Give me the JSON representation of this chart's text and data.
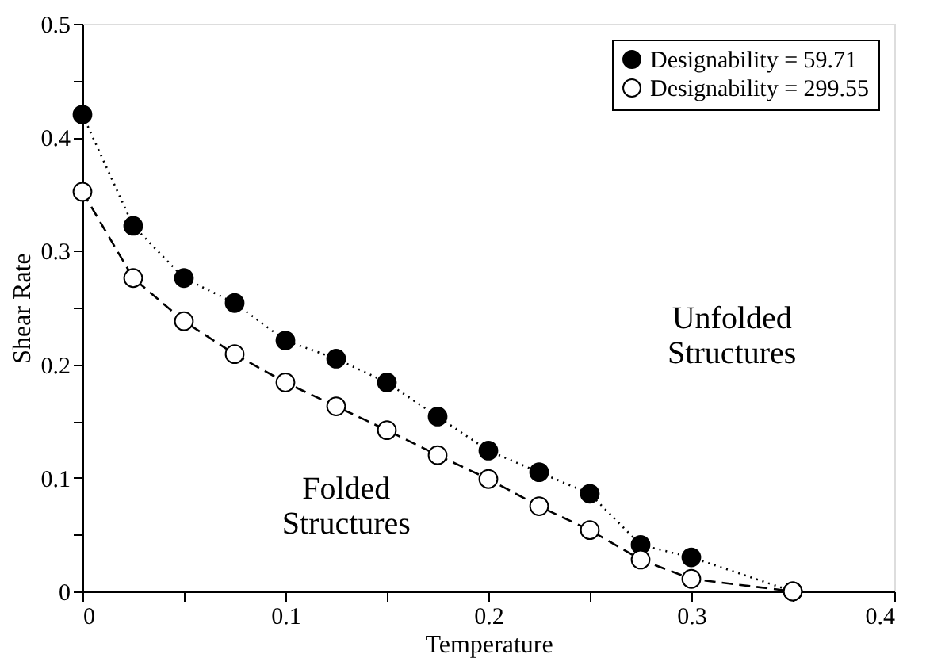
{
  "chart_data": {
    "type": "line",
    "xlabel": "Temperature",
    "ylabel": "Shear Rate",
    "x": [
      0,
      0.025,
      0.05,
      0.075,
      0.1,
      0.125,
      0.15,
      0.175,
      0.2,
      0.225,
      0.25,
      0.275,
      0.3,
      0.35
    ],
    "series": [
      {
        "name": "Designability = 59.71",
        "color": "#000000",
        "line_style": "dotted",
        "marker": "circle",
        "values": [
          0.42,
          0.322,
          0.276,
          0.254,
          0.221,
          0.205,
          0.184,
          0.154,
          0.124,
          0.105,
          0.086,
          0.041,
          0.03,
          0
        ]
      },
      {
        "name": "Designability = 299.55",
        "color": "#000000",
        "line_style": "dashed",
        "marker": "circle",
        "values": [
          0.352,
          0.276,
          0.238,
          0.209,
          0.184,
          0.163,
          0.142,
          0.12,
          0.099,
          0.075,
          0.054,
          0.028,
          0.011,
          0
        ]
      }
    ],
    "xlim": [
      0,
      0.4
    ],
    "ylim": [
      0,
      0.5
    ],
    "xticks": [
      0,
      {
        "value": 0.05,
        "label": null
      },
      0.1,
      {
        "value": 0.15,
        "label": null
      },
      0.2,
      {
        "value": 0.25,
        "label": null
      },
      0.3,
      {
        "value": 0.35,
        "label": null
      },
      0.4
    ],
    "yticks": [
      0,
      {
        "value": 0.05,
        "label": null
      },
      0.1,
      {
        "value": 0.15,
        "label": null
      },
      0.2,
      {
        "value": 0.25,
        "label": null
      },
      0.3,
      {
        "value": 0.35,
        "label": null
      },
      0.4,
      {
        "value": 0.45,
        "label": null
      },
      0.5
    ],
    "annotations": [
      "Unfolded\nStructures",
      "Folded\nStructures"
    ],
    "grid": false,
    "legend": "top right"
  }
}
